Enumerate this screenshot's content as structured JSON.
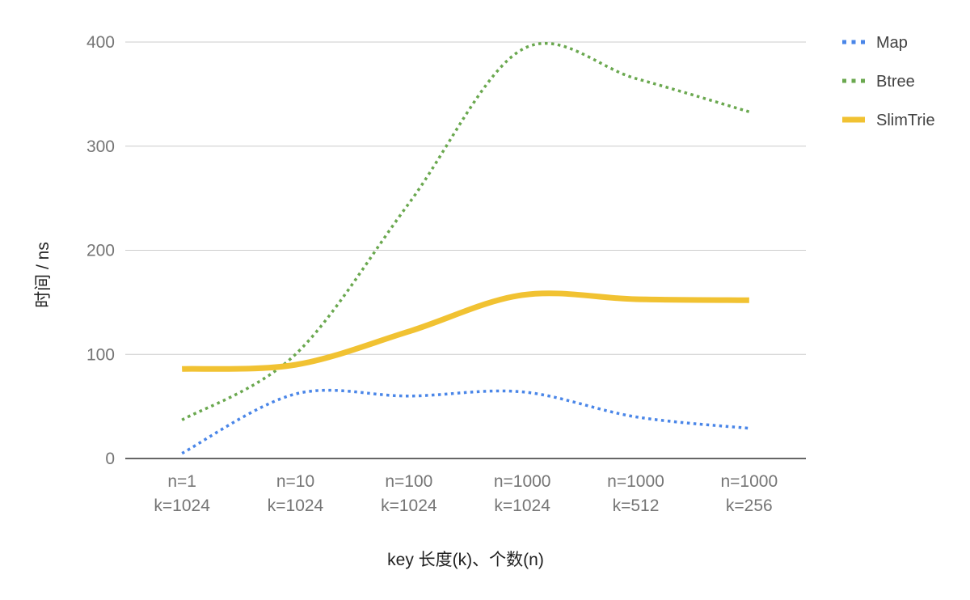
{
  "chart_data": {
    "type": "line",
    "categories": [
      [
        "n=1",
        "k=1024"
      ],
      [
        "n=10",
        "k=1024"
      ],
      [
        "n=100",
        "k=1024"
      ],
      [
        "n=1000",
        "k=1024"
      ],
      [
        "n=1000",
        "k=512"
      ],
      [
        "n=1000",
        "k=256"
      ]
    ],
    "series": [
      {
        "name": "Map",
        "values": [
          5,
          62,
          60,
          64,
          40,
          29
        ],
        "color": "#4a86e8",
        "style": "dotted"
      },
      {
        "name": "Btree",
        "values": [
          37,
          100,
          245,
          393,
          365,
          333
        ],
        "color": "#6aa84f",
        "style": "dotted"
      },
      {
        "name": "SlimTrie",
        "values": [
          86,
          90,
          122,
          157,
          153,
          152
        ],
        "color": "#f1c232",
        "style": "solid"
      }
    ],
    "xlabel": "key 长度(k)、个数(n)",
    "ylabel": "时间 / ns",
    "ylim": [
      0,
      400
    ],
    "yticks": [
      0,
      100,
      200,
      300,
      400
    ],
    "grid": true,
    "legend_position": "right",
    "smooth": true
  }
}
